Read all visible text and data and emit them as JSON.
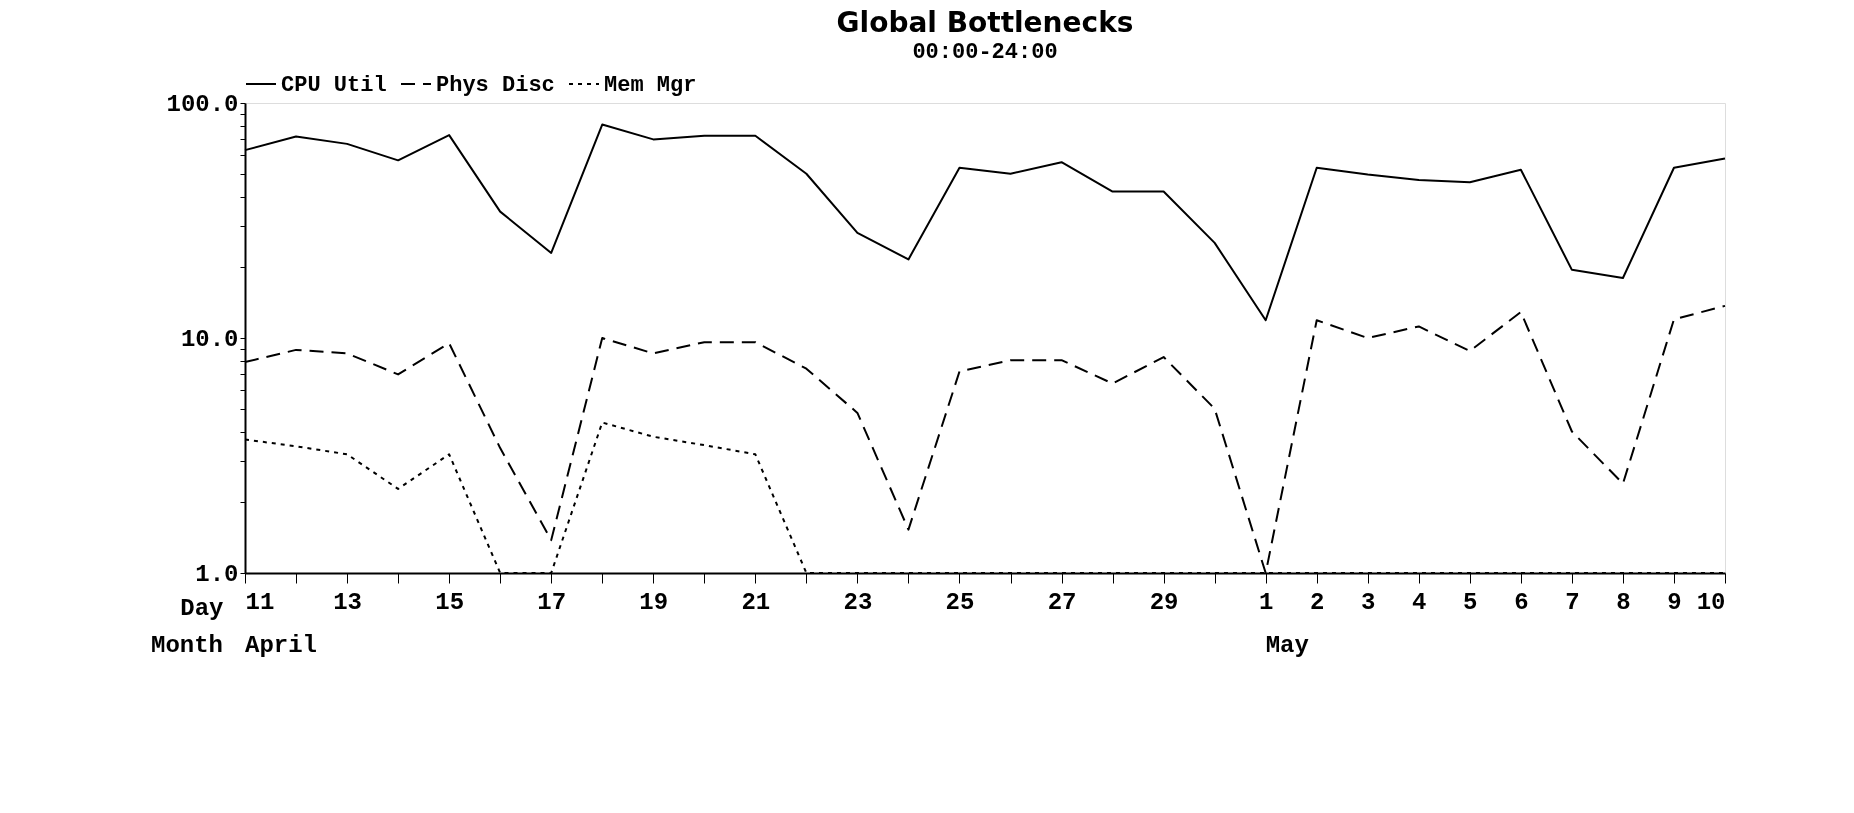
{
  "chart_data": {
    "type": "line",
    "title": "Global Bottlenecks",
    "subtitle": "00:00-24:00",
    "xlabel": "Day",
    "categories": [
      "11",
      null,
      "13",
      null,
      "15",
      null,
      "17",
      null,
      "19",
      null,
      "21",
      null,
      "23",
      null,
      "25",
      null,
      "27",
      null,
      "29",
      null,
      "1",
      "2",
      "3",
      "4",
      "5",
      "6",
      "7",
      "8",
      "9",
      "10"
    ],
    "series": [
      {
        "name": "CPU Util",
        "color": "#000000",
        "line_style": "solid",
        "values": [
          63,
          72,
          67,
          57,
          73,
          34.5,
          23,
          81,
          70,
          72.5,
          72.5,
          50,
          28,
          21.6,
          53,
          50,
          56,
          42,
          42,
          25.4,
          11.9,
          53,
          49.6,
          47,
          46,
          52,
          19.5,
          18,
          53,
          58
        ]
      },
      {
        "name": "Phys Disc",
        "color": "#000000",
        "line_style": "dashed",
        "values": [
          7.9,
          8.9,
          8.6,
          7.0,
          9.5,
          3.4,
          1.38,
          10.0,
          8.6,
          9.6,
          9.6,
          7.4,
          4.8,
          1.53,
          7.2,
          8.05,
          8.05,
          6.4,
          8.3,
          5.0,
          1.0,
          11.9,
          10.0,
          11.2,
          8.8,
          12.9,
          4.0,
          2.4,
          12.0,
          13.7
        ]
      },
      {
        "name": "Mem Mgr",
        "color": "#000000",
        "line_style": "dotted",
        "values": [
          3.7,
          3.46,
          3.2,
          2.28,
          3.2,
          1.0,
          1.0,
          4.37,
          3.8,
          3.5,
          3.2,
          1.0,
          1.0,
          1.0,
          1.0,
          1.0,
          1.0,
          1.0,
          1.0,
          1.0,
          1.0,
          1.0,
          1.0,
          1.0,
          1.0,
          1.0,
          1.0,
          1.0,
          1.0,
          1.0
        ]
      }
    ],
    "ylim": [
      1,
      100
    ],
    "log": true,
    "yticks": [
      {
        "value": 1,
        "label": "1.0"
      },
      {
        "value": 2,
        "label": null
      },
      {
        "value": 3,
        "label": null
      },
      {
        "value": 4,
        "label": null
      },
      {
        "value": 5,
        "label": null
      },
      {
        "value": 6,
        "label": null
      },
      {
        "value": 7,
        "label": null
      },
      {
        "value": 8,
        "label": null
      },
      {
        "value": 9,
        "label": null
      },
      {
        "value": 10,
        "label": "10.0"
      },
      {
        "value": 20,
        "label": null
      },
      {
        "value": 30,
        "label": null
      },
      {
        "value": 40,
        "label": null
      },
      {
        "value": 50,
        "label": null
      },
      {
        "value": 60,
        "label": null
      },
      {
        "value": 70,
        "label": null
      },
      {
        "value": 80,
        "label": null
      },
      {
        "value": 90,
        "label": null
      },
      {
        "value": 100,
        "label": "100.0"
      }
    ],
    "annotations": [
      "Month",
      "April",
      "May"
    ],
    "grid": false,
    "legend": "top left",
    "marker": "none"
  }
}
